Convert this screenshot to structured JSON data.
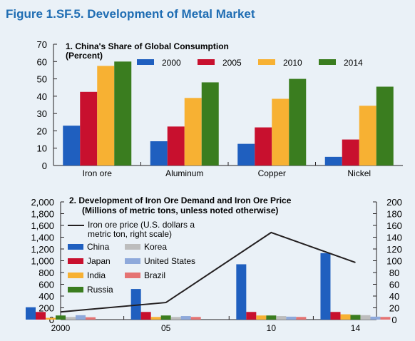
{
  "figure_title": "Figure 1.SF.5. Development of Metal Market",
  "colors": {
    "background": "#eaf1f7",
    "title": "#1f6db3",
    "s2000": "#1f5fbf",
    "s2005": "#c8102e",
    "s2010": "#f7b133",
    "s2014": "#3a7d1f",
    "china": "#1f5fbf",
    "japan": "#c8102e",
    "india": "#f7b133",
    "russia": "#3a7d1f",
    "korea": "#bdbdbd",
    "united_states": "#8ea9db",
    "brazil": "#e57373",
    "iron_price": "#231f20"
  },
  "chart_data": [
    {
      "type": "bar",
      "title": "1. China's Share of Global Consumption",
      "subtitle": "(Percent)",
      "categories": [
        "Iron ore",
        "Aluminum",
        "Copper",
        "Nickel"
      ],
      "series": [
        {
          "name": "2000",
          "values": [
            23,
            14,
            12.5,
            5
          ]
        },
        {
          "name": "2005",
          "values": [
            42.5,
            22.5,
            22,
            15
          ]
        },
        {
          "name": "2010",
          "values": [
            57.5,
            39,
            38.5,
            34.5
          ]
        },
        {
          "name": "2014",
          "values": [
            60,
            48,
            50,
            45.5
          ]
        }
      ],
      "ylim": [
        0,
        70
      ],
      "yticks": [
        "0",
        "10",
        "20",
        "30",
        "40",
        "50",
        "60",
        "70"
      ],
      "legend": "top-right",
      "grid": false
    },
    {
      "type": "bar",
      "title": "2. Development of Iron Ore Demand and Iron Ore Price",
      "subtitle": "(Millions of metric tons, unless noted otherwise)",
      "categories": [
        "2000",
        "05",
        "10",
        "14"
      ],
      "series": [
        {
          "name": "China",
          "values": [
            210,
            520,
            940,
            1130
          ]
        },
        {
          "name": "Japan",
          "values": [
            130,
            130,
            130,
            130
          ]
        },
        {
          "name": "India",
          "values": [
            30,
            45,
            70,
            90
          ]
        },
        {
          "name": "Russia",
          "values": [
            70,
            70,
            70,
            80
          ]
        },
        {
          "name": "Korea",
          "values": [
            45,
            45,
            60,
            75
          ]
        },
        {
          "name": "United States",
          "values": [
            75,
            60,
            50,
            50
          ]
        },
        {
          "name": "Brazil",
          "values": [
            40,
            45,
            45,
            45
          ]
        }
      ],
      "line_series": {
        "name": "Iron ore price (U.S. dollars a metric ton, right scale)",
        "name_lines": [
          "Iron ore price (U.S. dollars a",
          "metric ton, right scale)"
        ],
        "x": [
          2000,
          2005,
          2010,
          2014
        ],
        "values": [
          13,
          29,
          148,
          97
        ]
      },
      "ylim_left": [
        0,
        2000
      ],
      "yticks_left": [
        "0",
        "200",
        "400",
        "600",
        "800",
        "1,000",
        "1,200",
        "1,400",
        "1,600",
        "1,800",
        "2,000"
      ],
      "ylim_right": [
        0,
        200
      ],
      "yticks_right": [
        "0",
        "20",
        "40",
        "60",
        "80",
        "100",
        "120",
        "140",
        "160",
        "180",
        "200"
      ],
      "xlim": [
        2000,
        2015
      ],
      "legend": "top-left",
      "grid": false
    }
  ]
}
